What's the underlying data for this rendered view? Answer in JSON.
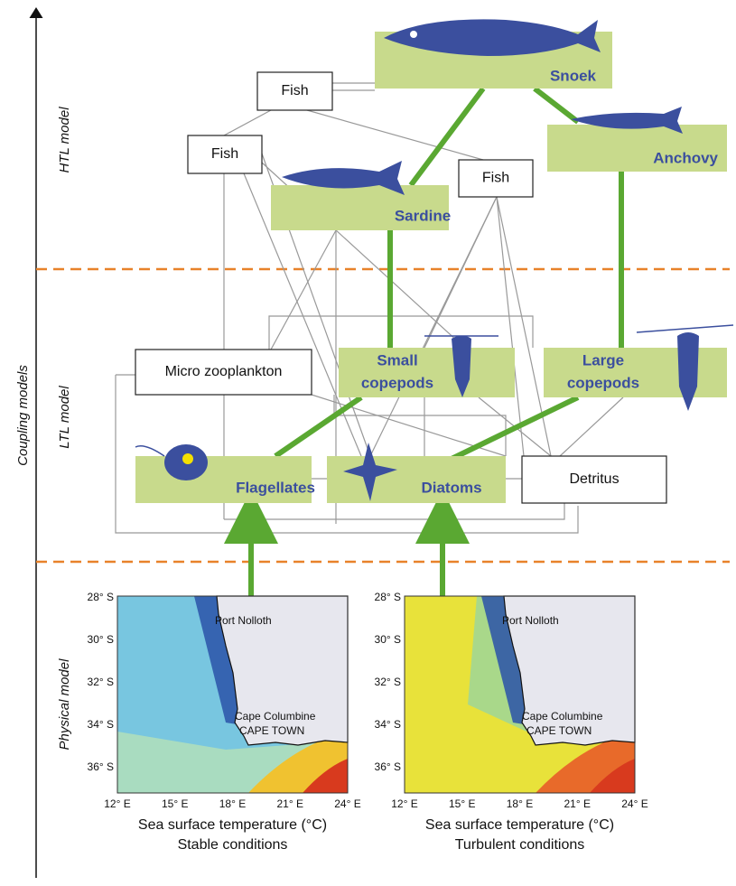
{
  "side_labels": {
    "htl": "HTL model",
    "coupling": "Coupling models",
    "ltl": "LTL model",
    "physical": "Physical model"
  },
  "nodes": [
    {
      "lines": [
        "Snoek"
      ]
    },
    {
      "lines": [
        "Anchovy"
      ]
    },
    {
      "lines": [
        "Sardine"
      ]
    },
    {
      "lines": [
        "Small",
        "copepods"
      ]
    },
    {
      "lines": [
        "Large",
        "copepods"
      ]
    },
    {
      "lines": [
        "Flagellates"
      ]
    },
    {
      "lines": [
        "Diatoms"
      ]
    },
    {
      "lines": [
        "Fish"
      ]
    },
    {
      "lines": [
        "Fish"
      ]
    },
    {
      "lines": [
        "Fish"
      ]
    },
    {
      "lines": [
        "Micro zooplankton"
      ]
    },
    {
      "lines": [
        "Detritus"
      ]
    }
  ],
  "maps": [
    {
      "caption": "Sea surface temperature (°C)",
      "condition": "Stable conditions",
      "places": [
        "Port Nolloth",
        "Cape Columbine",
        "CAPE TOWN"
      ],
      "lat_labels": [
        "28° S",
        "30° S",
        "32° S",
        "34° S",
        "36° S"
      ],
      "lon_labels": [
        "12° E",
        "15° E",
        "18° E",
        "21° E",
        "24° E"
      ]
    },
    {
      "caption": "Sea surface temperature (°C)",
      "condition": "Turbulent conditions",
      "places": [
        "Port Nolloth",
        "Cape Columbine",
        "CAPE TOWN"
      ],
      "lat_labels": [
        "28° S",
        "30° S",
        "32° S",
        "34° S",
        "36° S"
      ],
      "lon_labels": [
        "12° E",
        "15° E",
        "18° E",
        "21° E",
        "24° E"
      ]
    }
  ]
}
